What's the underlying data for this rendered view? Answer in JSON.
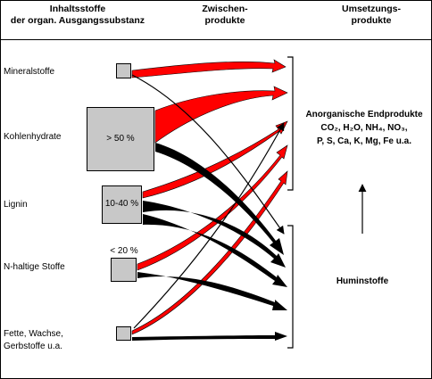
{
  "header": {
    "col1_line1": "Inhaltsstoffe",
    "col1_line2": "der organ. Ausgangssubstanz",
    "col2_line1": "Zwischen-",
    "col2_line2": "produkte",
    "col3_line1": "Umsetzungs-",
    "col3_line2": "produkte"
  },
  "substances": {
    "mineral": "Mineralstoffe",
    "kohlenhydrate": "Kohlenhydrate",
    "lignin": "Lignin",
    "n_haltige": "N-haltige Stoffe",
    "fette_line1": "Fette, Wachse,",
    "fette_line2": "Gerbstoffe u.a."
  },
  "percentages": {
    "kohlenhydrate": "> 50 %",
    "lignin": "10-40 %",
    "n_haltige": "< 20 %"
  },
  "products": {
    "anorganisch_title": "Anorganische Endprodukte",
    "anorganisch_line2": "CO₂, H₂O, NH₄, NO₃,",
    "anorganisch_line3": "P, S, Ca, K, Mg, Fe u.a.",
    "humin": "Huminstoffe"
  },
  "colors": {
    "mineralisation_arrow": "#ff0000",
    "humification_arrow": "#000000",
    "box_fill": "#c8c8c8"
  }
}
